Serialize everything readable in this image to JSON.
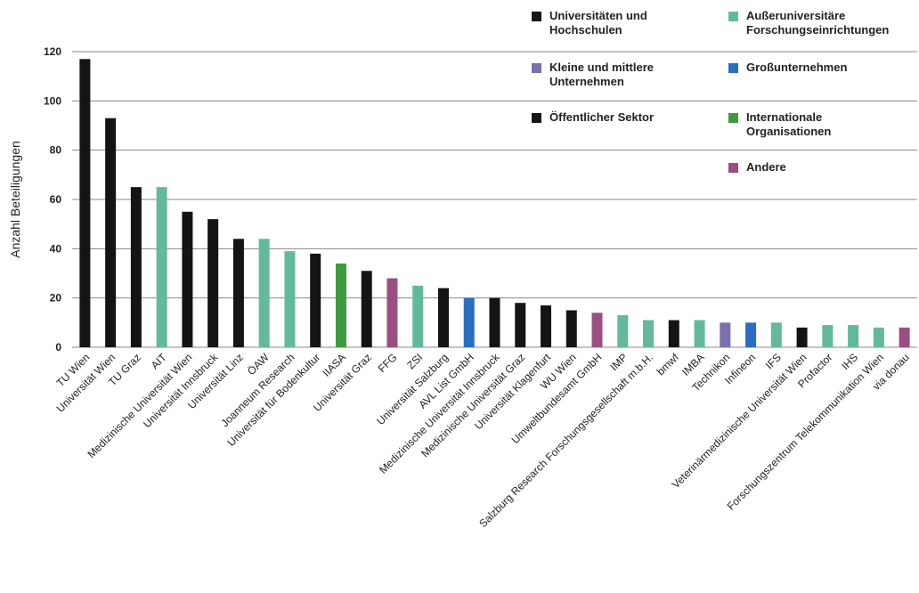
{
  "chart_data": {
    "type": "bar",
    "y_label": "Anzahl Beteiligungen",
    "categories": [
      "TU Wien",
      "Universität Wien",
      "TU Graz",
      "AIT",
      "Medizinische Universität Wien",
      "Universität Innsbruck",
      "Universität Linz",
      "ÖAW",
      "Joanneum Research",
      "Universität für Bodenkultur",
      "IIASA",
      "Universität Graz",
      "FFG",
      "ZSI",
      "Universität Salzburg",
      "AVL List GmbH",
      "Medizinische Universität Innsbruck",
      "Medizinische Universität Graz",
      "Universität Klagenfurt",
      "WU Wien",
      "Umweltbundesamt GmbH",
      "IMP",
      "Salzburg Research Forschungsgesellschaft m.b.H.",
      "bmwf",
      "IMBA",
      "Technikon",
      "Infineon",
      "IFS",
      "Veterinärmedizinische Universität Wien",
      "Profactor",
      "IHS",
      "Forschungszentrum Telekommunikation Wien",
      "via donau"
    ],
    "series": [
      {
        "name": "Universitäten und Hochschulen",
        "color": "#141414",
        "values": [
          117,
          93,
          65,
          null,
          55,
          52,
          44,
          null,
          null,
          38,
          null,
          31,
          null,
          null,
          24,
          null,
          20,
          18,
          17,
          15,
          null,
          null,
          null,
          null,
          null,
          null,
          null,
          null,
          8,
          null,
          null,
          null,
          null
        ]
      },
      {
        "name": "Außeruniversitäre Forschungseinrichtungen",
        "color": "#62b99c",
        "values": [
          null,
          null,
          null,
          65,
          null,
          null,
          null,
          44,
          39,
          null,
          null,
          null,
          null,
          25,
          null,
          null,
          null,
          null,
          null,
          null,
          null,
          13,
          11,
          null,
          11,
          null,
          null,
          10,
          null,
          9,
          9,
          8,
          null
        ]
      },
      {
        "name": "Kleine und mittlere Unternehmen",
        "color": "#7b70ad",
        "values": [
          null,
          null,
          null,
          null,
          null,
          null,
          null,
          null,
          null,
          null,
          null,
          null,
          null,
          null,
          null,
          null,
          null,
          null,
          null,
          null,
          null,
          null,
          null,
          null,
          null,
          10,
          null,
          null,
          null,
          null,
          null,
          null,
          null
        ]
      },
      {
        "name": "Großunternehmen",
        "color": "#2a6ec2",
        "values": [
          null,
          null,
          null,
          null,
          null,
          null,
          null,
          null,
          null,
          null,
          null,
          null,
          null,
          null,
          null,
          20,
          null,
          null,
          null,
          null,
          null,
          null,
          null,
          null,
          null,
          null,
          10,
          null,
          null,
          null,
          null,
          null,
          null
        ]
      },
      {
        "name": "Öffentlicher Sektor",
        "color": "#141414",
        "values": [
          null,
          null,
          null,
          null,
          null,
          null,
          null,
          null,
          null,
          null,
          null,
          null,
          null,
          null,
          null,
          null,
          null,
          null,
          null,
          null,
          null,
          null,
          null,
          11,
          null,
          null,
          null,
          null,
          null,
          null,
          null,
          null,
          null
        ]
      },
      {
        "name": "Internationale Organisationen",
        "color": "#3f9b3f",
        "values": [
          null,
          null,
          null,
          null,
          null,
          null,
          null,
          null,
          null,
          null,
          34,
          null,
          null,
          null,
          null,
          null,
          null,
          null,
          null,
          null,
          null,
          null,
          null,
          null,
          null,
          null,
          null,
          null,
          null,
          null,
          null,
          null,
          null
        ]
      },
      {
        "name": "Andere",
        "color": "#9b4f80",
        "values": [
          null,
          null,
          null,
          null,
          null,
          null,
          null,
          null,
          null,
          null,
          null,
          null,
          28,
          null,
          null,
          null,
          null,
          null,
          null,
          null,
          14,
          null,
          null,
          null,
          null,
          null,
          null,
          null,
          null,
          null,
          null,
          null,
          8
        ]
      }
    ],
    "ylim": [
      0,
      120
    ],
    "yticks": [
      0,
      20,
      40,
      60,
      80,
      100,
      120
    ],
    "grid": true
  }
}
